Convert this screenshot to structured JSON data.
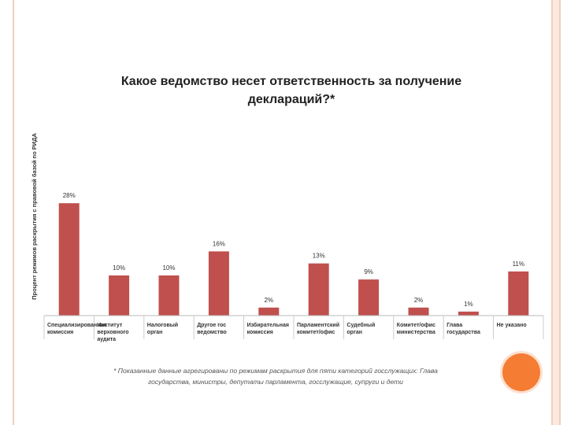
{
  "chart_data": {
    "type": "bar",
    "title_line1": "Какое ведомство несет ответственность за получение",
    "title_line2": "деклараций?*",
    "ylabel": "Процент режимов раскрытия с правовой базой по РИДА",
    "categories": [
      [
        "Специализированная",
        "комиссия"
      ],
      [
        "Институт",
        "верховного",
        "аудита"
      ],
      [
        "Налоговый",
        "орган"
      ],
      [
        "Другое гос",
        "ведомство"
      ],
      [
        "Избирательная",
        "комиссия"
      ],
      [
        "Парламентский",
        "комитет/офис"
      ],
      [
        "Судебный",
        "орган"
      ],
      [
        "Комитет/офис",
        "министерства"
      ],
      [
        "Глава",
        "государства"
      ],
      [
        "Не указано"
      ]
    ],
    "values": [
      28,
      10,
      10,
      16,
      2,
      13,
      9,
      2,
      1,
      11
    ],
    "labels": [
      "28%",
      "10%",
      "10%",
      "16%",
      "2%",
      "13%",
      "9%",
      "2%",
      "1%",
      "11%"
    ],
    "ylim": [
      0,
      30
    ],
    "bar_color": "#c0504d",
    "footnote_line1": "* Показанные данные агрегированы по режимам раскрытия для пяти категорий госслужащих: Глава",
    "footnote_line2": "государства, министры, депутаты парламента, госслужащие, супруги и дети"
  },
  "colors": {
    "accent_circle": "#f57c33",
    "side_line": "#f3cdbd"
  }
}
